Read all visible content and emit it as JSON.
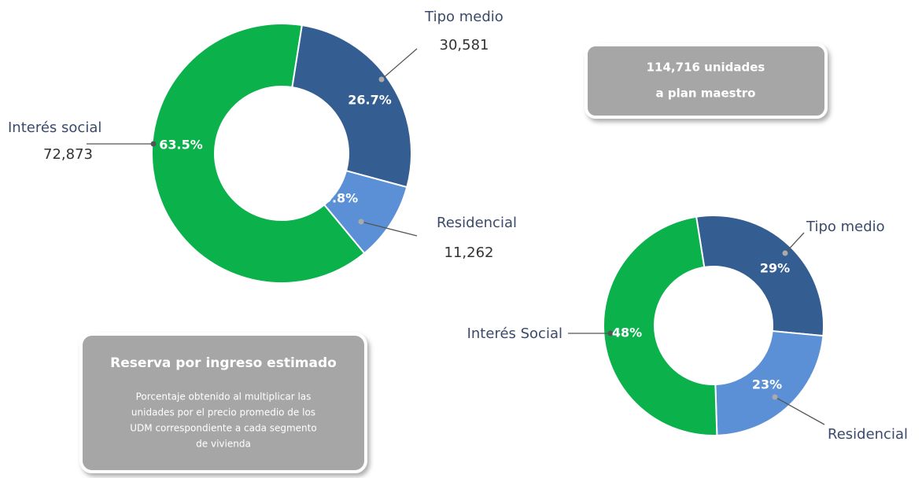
{
  "chart_data": [
    {
      "type": "donut",
      "categories": [
        "Tipo medio",
        "Residencial",
        "Interés social"
      ],
      "values": [
        26.7,
        9.8,
        63.5
      ],
      "value_labels": [
        "26.7%",
        "9.8%",
        "63.5%"
      ],
      "count_labels": [
        "30,581",
        "11,262",
        "72,873"
      ],
      "colors": [
        "#345d91",
        "#5b8fd6",
        "#0bb14b"
      ]
    },
    {
      "type": "donut",
      "categories": [
        "Tipo medio",
        "Residencial",
        "Interés Social"
      ],
      "values": [
        29,
        23,
        48
      ],
      "value_labels": [
        "29%",
        "23%",
        "48%"
      ],
      "colors": [
        "#345d91",
        "#5b8fd6",
        "#0bb14b"
      ]
    }
  ],
  "boxes": [
    {
      "lines": [
        "114,716  unidades",
        "a plan maestro"
      ]
    },
    {
      "title": "Reserva por ingreso estimado",
      "lines": [
        "Porcentaje obtenido al multiplicar las",
        "unidades por el precio promedio de los",
        "UDM correspondiente  a cada segmento",
        "de vivienda"
      ]
    }
  ]
}
